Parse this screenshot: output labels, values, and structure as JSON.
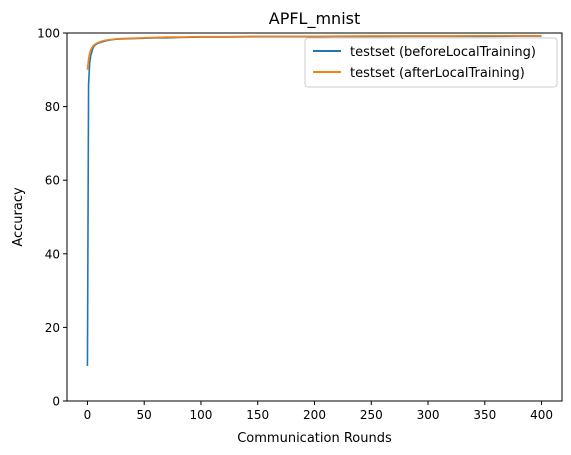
{
  "chart_data": {
    "type": "line",
    "title": "APFL_mnist",
    "xlabel": "Communication Rounds",
    "ylabel": "Accuracy",
    "xlim": [
      -18,
      418
    ],
    "ylim": [
      0,
      100
    ],
    "xticks": [
      0,
      50,
      100,
      150,
      200,
      250,
      300,
      350,
      400
    ],
    "yticks": [
      0,
      20,
      40,
      60,
      80,
      100
    ],
    "grid": false,
    "legend_position": "top-right",
    "series": [
      {
        "name": "testset (beforeLocalTraining)",
        "color": "#1f77b4",
        "x": [
          0,
          1,
          2,
          3,
          4,
          5,
          6,
          8,
          10,
          15,
          20,
          25,
          30,
          40,
          50,
          60,
          70,
          80,
          100,
          120,
          150,
          180,
          200,
          220,
          250,
          280,
          300,
          320,
          350,
          380,
          400
        ],
        "y": [
          9.5,
          86,
          92,
          94,
          95,
          96,
          96.5,
          97,
          97.3,
          97.8,
          98.1,
          98.3,
          98.4,
          98.5,
          98.6,
          98.7,
          98.7,
          98.8,
          98.9,
          98.9,
          99.0,
          99.0,
          99.0,
          99.05,
          99.05,
          99.1,
          99.1,
          99.1,
          99.1,
          99.15,
          99.15
        ]
      },
      {
        "name": "testset (afterLocalTraining)",
        "color": "#ff7f0e",
        "x": [
          0,
          1,
          2,
          3,
          4,
          5,
          6,
          8,
          10,
          15,
          20,
          25,
          30,
          40,
          50,
          60,
          70,
          80,
          100,
          120,
          150,
          180,
          200,
          220,
          250,
          280,
          300,
          320,
          350,
          380,
          400
        ],
        "y": [
          90,
          93,
          94.5,
          95.5,
          96,
          96.5,
          96.8,
          97.2,
          97.5,
          98,
          98.2,
          98.4,
          98.5,
          98.6,
          98.7,
          98.8,
          98.9,
          98.9,
          99.0,
          99.0,
          99.1,
          99.1,
          99.1,
          99.15,
          99.2,
          99.2,
          99.2,
          99.2,
          99.25,
          99.25,
          99.25
        ]
      }
    ]
  }
}
